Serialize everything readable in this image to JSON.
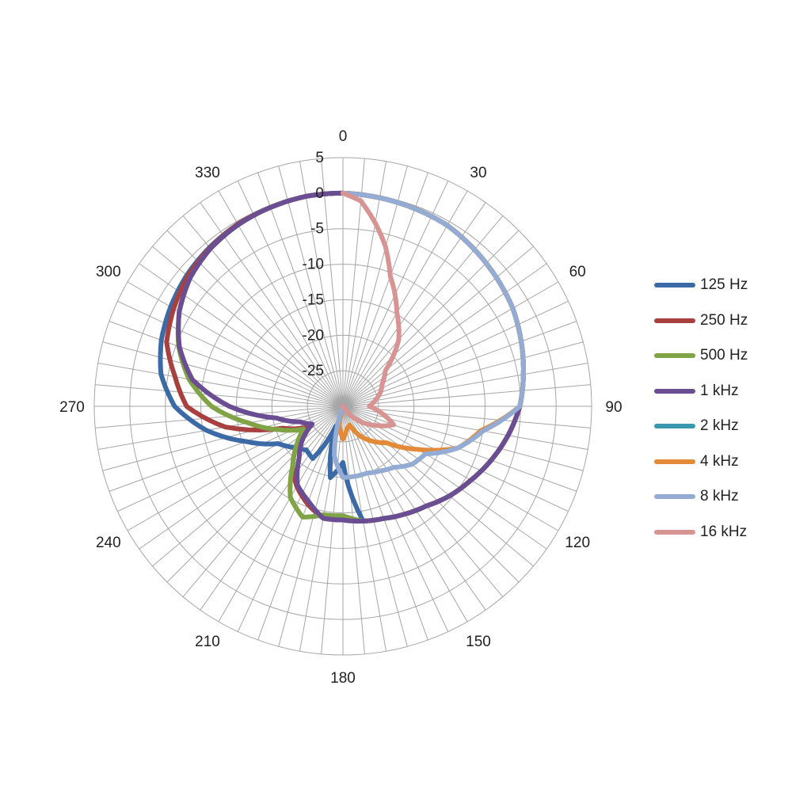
{
  "chart_data": {
    "type": "polar-line",
    "angular_labels": [
      "0",
      "30",
      "60",
      "90",
      "120",
      "150",
      "180",
      "210",
      "240",
      "270",
      "300",
      "330"
    ],
    "radial_ticks": [
      "5",
      "0",
      "-5",
      "-10",
      "-15",
      "-20",
      "-25"
    ],
    "rlim": [
      -30,
      5
    ],
    "angular_gridline_step_deg": 5,
    "grid": true,
    "legend_position": "right",
    "series": [
      {
        "name": "125 Hz",
        "color": "#3c6aa6",
        "angles": [
          0,
          30,
          60,
          90,
          100,
          110,
          120,
          130,
          140,
          150,
          160,
          170,
          180,
          190,
          200,
          210,
          220,
          230,
          240,
          250,
          260,
          270,
          280,
          290,
          300,
          310,
          320,
          330,
          340,
          350,
          360
        ],
        "values": [
          0,
          -0.6,
          -2.4,
          -5.1,
          -6.4,
          -7.8,
          -9.2,
          -10.4,
          -11.7,
          -12.5,
          -13.2,
          -13.6,
          -22.1,
          -19.8,
          -27,
          -21.5,
          -22,
          -21,
          -19.5,
          -15.5,
          -10.5,
          -6.3,
          -4,
          -2.8,
          -2,
          -1.3,
          -0.8,
          -0.4,
          -0.2,
          0,
          0
        ]
      },
      {
        "name": "250 Hz",
        "color": "#a84040",
        "angles": [
          0,
          30,
          60,
          90,
          100,
          110,
          120,
          130,
          140,
          150,
          160,
          170,
          180,
          190,
          200,
          210,
          220,
          230,
          240,
          250,
          260,
          270,
          280,
          290,
          300,
          310,
          320,
          330,
          340,
          350,
          360
        ],
        "values": [
          0,
          -0.6,
          -2.4,
          -5.1,
          -6.4,
          -7.8,
          -9.2,
          -10.4,
          -11.7,
          -12.5,
          -13.2,
          -13.6,
          -14,
          -14,
          -15.4,
          -17,
          -19,
          -21.5,
          -24,
          -21,
          -13.2,
          -8,
          -6,
          -3.6,
          -2.5,
          -1.5,
          -0.9,
          -0.4,
          -0.2,
          0,
          0
        ]
      },
      {
        "name": "500 Hz",
        "color": "#7fa345",
        "angles": [
          0,
          30,
          60,
          90,
          100,
          110,
          120,
          130,
          140,
          150,
          160,
          170,
          180,
          190,
          200,
          210,
          220,
          230,
          240,
          250,
          260,
          270,
          280,
          290,
          300,
          310,
          320,
          330,
          340,
          350,
          360
        ],
        "values": [
          0,
          -0.6,
          -2.4,
          -5.1,
          -6.4,
          -7.8,
          -9.2,
          -10.4,
          -11.7,
          -12.5,
          -13.2,
          -13.6,
          -14.6,
          -14.5,
          -13.4,
          -15.2,
          -19,
          -21.5,
          -23.6,
          -20.4,
          -16.5,
          -11.5,
          -8,
          -5.4,
          -3.4,
          -1.9,
          -1,
          -0.5,
          -0.2,
          0,
          0
        ]
      },
      {
        "name": "1 kHz",
        "color": "#6b4d93",
        "angles": [
          0,
          30,
          60,
          90,
          100,
          110,
          120,
          130,
          140,
          150,
          160,
          170,
          180,
          190,
          200,
          210,
          220,
          230,
          240,
          250,
          260,
          270,
          280,
          290,
          300,
          310,
          320,
          330,
          340,
          350,
          360
        ],
        "values": [
          0,
          -0.6,
          -2.4,
          -5.1,
          -6.4,
          -7.8,
          -9.2,
          -10.4,
          -11.7,
          -12.5,
          -13.2,
          -13.6,
          -14,
          -14,
          -15.8,
          -17.2,
          -20.4,
          -22.5,
          -25,
          -23.6,
          -20.5,
          -14,
          -8.5,
          -5.5,
          -3.4,
          -1.9,
          -1,
          -0.5,
          -0.2,
          0,
          0
        ]
      },
      {
        "name": "2 kHz",
        "color": "#3a98ad",
        "angles": [],
        "values": []
      },
      {
        "name": "4 kHz",
        "color": "#e28a38",
        "angles": [
          0,
          30,
          60,
          90,
          100,
          110,
          120,
          130,
          140,
          150,
          160,
          170,
          180,
          190,
          200,
          210,
          220,
          230,
          240,
          250,
          260,
          270,
          280,
          290,
          300,
          310,
          320,
          330,
          340,
          350,
          360
        ],
        "values": [
          0,
          -0.6,
          -2.4,
          -5.1,
          -10.3,
          -12.8,
          -17.9,
          -22,
          -23.6,
          -25.2,
          -27.2,
          -26.8,
          -25.4,
          -27.2,
          -30,
          -30,
          -30,
          -30,
          -30,
          -30,
          -30,
          -30,
          -30,
          -30,
          -30,
          -30,
          -30,
          -30,
          -30,
          -30,
          -30
        ]
      },
      {
        "name": "8 kHz",
        "color": "#94acd4",
        "angles": [
          0,
          30,
          60,
          90,
          100,
          110,
          120,
          130,
          140,
          150,
          160,
          170,
          180,
          190,
          200,
          210,
          220,
          230,
          240,
          250,
          260,
          270,
          280,
          290,
          300,
          310,
          320,
          330,
          340,
          350,
          360
        ],
        "values": [
          0,
          -0.6,
          -2.4,
          -5.1,
          -10,
          -12.8,
          -16.6,
          -17.3,
          -18.8,
          -19.5,
          -20,
          -20,
          -20,
          -23,
          -30,
          -30,
          -30,
          -30,
          -30,
          -30,
          -30,
          -30,
          -30,
          -30,
          -30,
          -30,
          -30,
          -30,
          -30,
          -30,
          -30
        ]
      },
      {
        "name": "16 kHz",
        "color": "#d79492",
        "angles": [
          0,
          5,
          10,
          15,
          20,
          30,
          40,
          50,
          60,
          70,
          80,
          90,
          100,
          110,
          120,
          130,
          140,
          150,
          160,
          170,
          180,
          190,
          360
        ],
        "values": [
          0,
          -1,
          -3.8,
          -6.8,
          -10.5,
          -14.8,
          -17.8,
          -22.2,
          -23.6,
          -24.4,
          -25.4,
          -26.3,
          -24.5,
          -22.4,
          -24.6,
          -26.5,
          -28.5,
          -30,
          -30,
          -30,
          -30,
          -30,
          -30
        ]
      }
    ]
  }
}
